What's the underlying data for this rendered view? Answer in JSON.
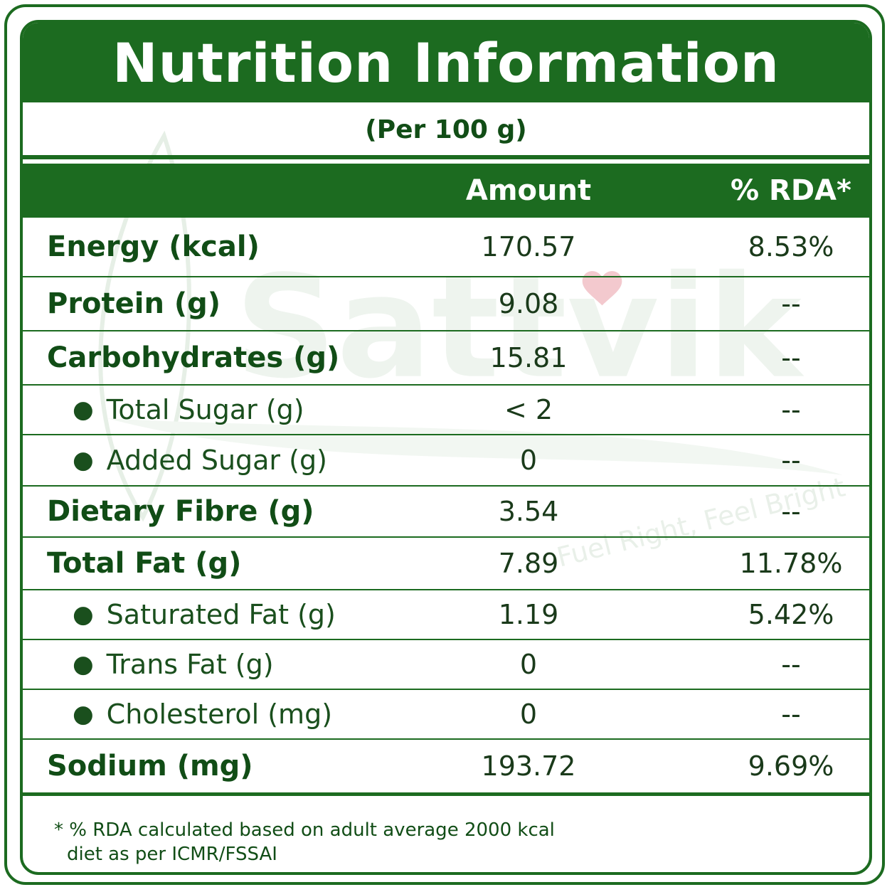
{
  "title": "Nutrition Information",
  "serving": "(Per 100 g)",
  "columns": {
    "amount": "Amount",
    "rda": "% RDA*"
  },
  "rows": [
    {
      "label": "Energy (kcal)",
      "amount": "170.57",
      "rda": "8.53%",
      "level": "main"
    },
    {
      "label": "Protein (g)",
      "amount": "9.08",
      "rda": "--",
      "level": "main"
    },
    {
      "label": "Carbohydrates (g)",
      "amount": "15.81",
      "rda": "--",
      "level": "main"
    },
    {
      "label": "Total Sugar (g)",
      "amount": "< 2",
      "rda": "--",
      "level": "sub"
    },
    {
      "label": "Added Sugar (g)",
      "amount": "0",
      "rda": "--",
      "level": "sub"
    },
    {
      "label": "Dietary Fibre (g)",
      "amount": "3.54",
      "rda": "--",
      "level": "main"
    },
    {
      "label": "Total Fat (g)",
      "amount": "7.89",
      "rda": "11.78%",
      "level": "main"
    },
    {
      "label": "Saturated Fat (g)",
      "amount": "1.19",
      "rda": "5.42%",
      "level": "sub"
    },
    {
      "label": "Trans Fat (g)",
      "amount": "0",
      "rda": "--",
      "level": "sub"
    },
    {
      "label": "Cholesterol (mg)",
      "amount": "0",
      "rda": "--",
      "level": "sub"
    },
    {
      "label": "Sodium (mg)",
      "amount": "193.72",
      "rda": "9.69%",
      "level": "main"
    }
  ],
  "footnote": {
    "line1": "* % RDA calculated based on adult average 2000 kcal",
    "line2": "diet as per ICMR/FSSAI"
  },
  "watermark": {
    "brand": "Sattvik",
    "tagline": "Fuel Right, Feel Bright"
  },
  "colors": {
    "brand_green": "#1c6b20",
    "text_green": "#114d16",
    "heart": "#e8a0a8"
  }
}
